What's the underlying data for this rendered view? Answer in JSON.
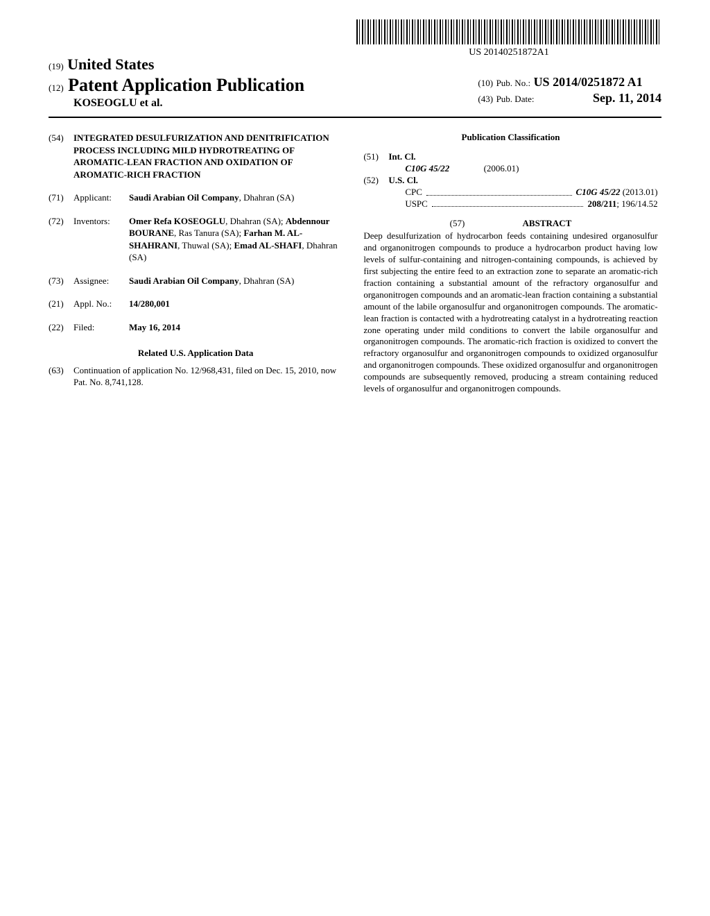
{
  "barcode_text": "US 20140251872A1",
  "header": {
    "country_prefix": "(19)",
    "country": "United States",
    "pub_type_prefix": "(12)",
    "pub_type": "Patent Application Publication",
    "author": "KOSEOGLU et al.",
    "pub_no_prefix": "(10)",
    "pub_no_label": "Pub. No.:",
    "pub_no": "US 2014/0251872 A1",
    "pub_date_prefix": "(43)",
    "pub_date_label": "Pub. Date:",
    "pub_date": "Sep. 11, 2014"
  },
  "title": {
    "num": "(54)",
    "text": "INTEGRATED DESULFURIZATION AND DENITRIFICATION PROCESS INCLUDING MILD HYDROTREATING OF AROMATIC-LEAN FRACTION AND OXIDATION OF AROMATIC-RICH FRACTION"
  },
  "applicant": {
    "num": "(71)",
    "label": "Applicant:",
    "name": "Saudi Arabian Oil Company",
    "location": ", Dhahran (SA)"
  },
  "inventors": {
    "num": "(72)",
    "label": "Inventors:",
    "list": [
      {
        "name": "Omer Refa KOSEOGLU",
        "loc": ", Dhahran (SA); "
      },
      {
        "name": "Abdennour BOURANE",
        "loc": ", Ras Tanura (SA); "
      },
      {
        "name": "Farhan M. AL-SHAHRANI",
        "loc": ", Thuwal (SA); "
      },
      {
        "name": "Emad AL-SHAFI",
        "loc": ", Dhahran (SA)"
      }
    ]
  },
  "assignee": {
    "num": "(73)",
    "label": "Assignee:",
    "name": "Saudi Arabian Oil Company",
    "location": ", Dhahran (SA)"
  },
  "appl_no": {
    "num": "(21)",
    "label": "Appl. No.:",
    "value": "14/280,001"
  },
  "filed": {
    "num": "(22)",
    "label": "Filed:",
    "value": "May 16, 2014"
  },
  "related": {
    "header": "Related U.S. Application Data",
    "num": "(63)",
    "text": "Continuation of application No. 12/968,431, filed on Dec. 15, 2010, now Pat. No. 8,741,128."
  },
  "classification": {
    "header": "Publication Classification",
    "int_cl": {
      "num": "(51)",
      "label": "Int. Cl.",
      "code": "C10G 45/22",
      "year": "(2006.01)"
    },
    "us_cl": {
      "num": "(52)",
      "label": "U.S. Cl.",
      "cpc_prefix": "CPC",
      "cpc_code": "C10G 45/22",
      "cpc_year": " (2013.01)",
      "uspc_prefix": "USPC",
      "uspc_code": "208/211",
      "uspc_extra": "; 196/14.52"
    }
  },
  "abstract": {
    "num": "(57)",
    "label": "ABSTRACT",
    "text": "Deep desulfurization of hydrocarbon feeds containing undesired organosulfur and organonitrogen compounds to produce a hydrocarbon product having low levels of sulfur-containing and nitrogen-containing compounds, is achieved by first subjecting the entire feed to an extraction zone to separate an aromatic-rich fraction containing a substantial amount of the refractory organosulfur and organonitrogen compounds and an aromatic-lean fraction containing a substantial amount of the labile organosulfur and organonitrogen compounds. The aromatic-lean fraction is contacted with a hydrotreating catalyst in a hydrotreating reaction zone operating under mild conditions to convert the labile organosulfur and organonitrogen compounds. The aromatic-rich fraction is oxidized to convert the refractory organosulfur and organonitrogen compounds to oxidized organosulfur and organonitrogen compounds. These oxidized organosulfur and organonitrogen compounds are subsequently removed, producing a stream containing reduced levels of organosulfur and organonitrogen compounds."
  }
}
